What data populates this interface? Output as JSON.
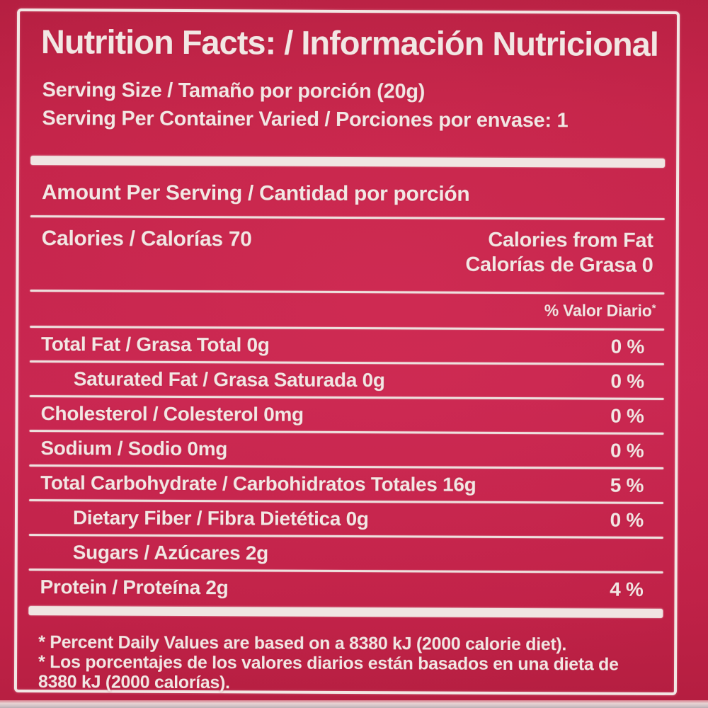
{
  "label": {
    "title": "Nutrition Facts: / Información Nutricional",
    "serving": {
      "size": "Serving Size / Tamaño por porción (20g)",
      "per_container": "Serving Per Container Varied / Porciones por envase: 1"
    },
    "amount_per_serving": "Amount Per Serving / Cantidad por porción",
    "calories": {
      "left": "Calories / Calorías 70",
      "right_line1": "Calories from Fat",
      "right_line2": "Calorías de Grasa 0"
    },
    "daily_value_header": "% Valor Diario",
    "daily_value_footnote_marker": "*",
    "rows": [
      {
        "label": "Total Fat / Grasa Total 0g",
        "value": "0 %",
        "indent": false
      },
      {
        "label": "Saturated Fat / Grasa Saturada 0g",
        "value": "0 %",
        "indent": true
      },
      {
        "label": "Cholesterol / Colesterol 0mg",
        "value": "0 %",
        "indent": false
      },
      {
        "label": "Sodium / Sodio 0mg",
        "value": "0 %",
        "indent": false
      },
      {
        "label": "Total Carbohydrate / Carbohidratos Totales 16g",
        "value": "5 %",
        "indent": false
      },
      {
        "label": "Dietary Fiber / Fibra Dietética 0g",
        "value": "0 %",
        "indent": true
      },
      {
        "label": "Sugars / Azúcares 2g",
        "value": "",
        "indent": true
      },
      {
        "label": "Protein / Proteína 2g",
        "value": "4 %",
        "indent": false
      }
    ],
    "footnotes": [
      "* Percent Daily Values are based on a 8380 kJ (2000 calorie diet).",
      "* Los porcentajes de los valores diarios están basados en una dieta de 8380 kJ (2000 calorías)."
    ],
    "colors": {
      "background_red": "#c22348",
      "text_white": "#f2e7e4"
    }
  }
}
